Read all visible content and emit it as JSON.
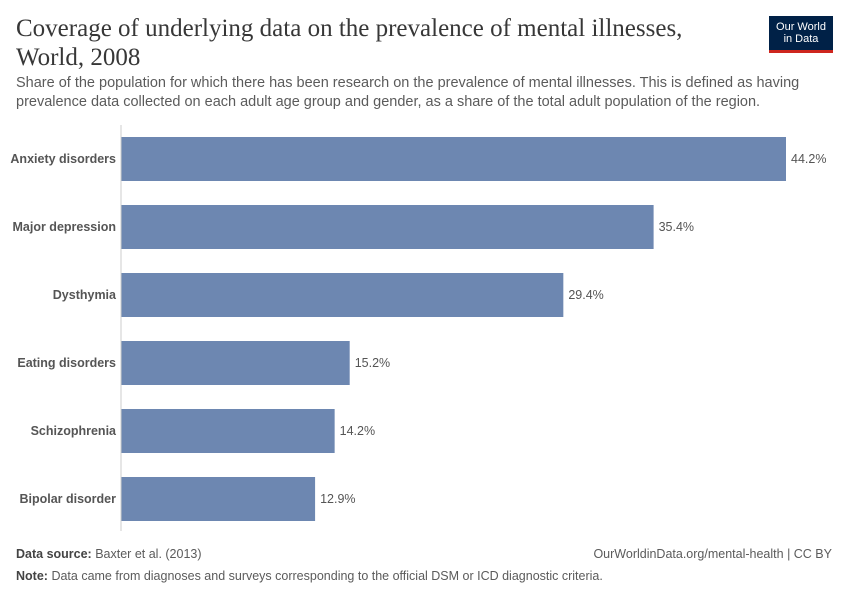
{
  "header": {
    "title": "Coverage of underlying data on the prevalence of mental illnesses, World, 2008",
    "subtitle": "Share of the population for which there has been research on the prevalence of mental illnesses. This is defined as having prevalence data collected on each adult age group and gender, as a share of the total adult population of the region.",
    "logo_line1": "Our World",
    "logo_line2": "in Data"
  },
  "footer": {
    "source_label": "Data source:",
    "source": "Baxter et al. (2013)",
    "url": "OurWorldinData.org/mental-health | CC BY",
    "note_label": "Note:",
    "note": "Data came from diagnoses and surveys corresponding to the official DSM or ICD diagnostic criteria."
  },
  "colors": {
    "bar": "#6d87b1",
    "logo_bg": "#002147",
    "logo_accent": "#ce261e"
  },
  "chart_data": {
    "type": "bar",
    "orientation": "horizontal",
    "categories": [
      "Anxiety disorders",
      "Major depression",
      "Dysthymia",
      "Eating disorders",
      "Schizophrenia",
      "Bipolar disorder"
    ],
    "values": [
      44.2,
      35.4,
      29.4,
      15.2,
      14.2,
      12.9
    ],
    "labels": [
      "44.2%",
      "35.4%",
      "29.4%",
      "15.2%",
      "14.2%",
      "12.9%"
    ],
    "unit": "%",
    "xlim": [
      0,
      44.2
    ],
    "grid": false
  }
}
